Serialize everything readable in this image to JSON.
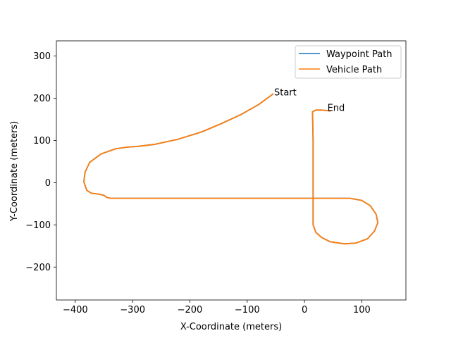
{
  "chart_data": {
    "type": "line",
    "title": "",
    "xlabel": "X-Coordinate (meters)",
    "ylabel": "Y-Coordinate (meters)",
    "xlim": [
      -433,
      177
    ],
    "ylim": [
      -278,
      336
    ],
    "xticks": [
      -400,
      -300,
      -200,
      -100,
      0,
      100
    ],
    "yticks": [
      -200,
      -100,
      0,
      100,
      200,
      300
    ],
    "grid": false,
    "legend_position": "top-right",
    "annotations": [
      {
        "text": "Start",
        "x": -53,
        "y": 207
      },
      {
        "text": "End",
        "x": 40,
        "y": 170
      }
    ],
    "series": [
      {
        "name": "Waypoint Path",
        "color": "#1f77b4",
        "points": [
          [
            -55,
            210
          ],
          [
            -80,
            185
          ],
          [
            -110,
            162
          ],
          [
            -145,
            140
          ],
          [
            -180,
            120
          ],
          [
            -220,
            103
          ],
          [
            -260,
            91
          ],
          [
            -290,
            86
          ],
          [
            -310,
            84
          ],
          [
            -330,
            80
          ],
          [
            -355,
            68
          ],
          [
            -375,
            48
          ],
          [
            -383,
            25
          ],
          [
            -385,
            2
          ],
          [
            -380,
            -18
          ],
          [
            -372,
            -25
          ],
          [
            -360,
            -27
          ],
          [
            -350,
            -30
          ],
          [
            -345,
            -35
          ],
          [
            -338,
            -37
          ],
          [
            -300,
            -37
          ],
          [
            -200,
            -37
          ],
          [
            -100,
            -37
          ],
          [
            0,
            -37
          ],
          [
            50,
            -37
          ],
          [
            80,
            -37
          ],
          [
            100,
            -42
          ],
          [
            115,
            -55
          ],
          [
            125,
            -75
          ],
          [
            128,
            -95
          ],
          [
            122,
            -115
          ],
          [
            110,
            -133
          ],
          [
            90,
            -143
          ],
          [
            70,
            -145
          ],
          [
            45,
            -140
          ],
          [
            30,
            -130
          ],
          [
            20,
            -118
          ],
          [
            15,
            -100
          ],
          [
            15,
            0
          ],
          [
            15,
            100
          ],
          [
            14,
            168
          ],
          [
            20,
            172
          ],
          [
            30,
            172
          ],
          [
            45,
            170
          ]
        ]
      },
      {
        "name": "Vehicle Path",
        "color": "#ff7f0e",
        "points": [
          [
            -55,
            210
          ],
          [
            -80,
            185
          ],
          [
            -110,
            162
          ],
          [
            -145,
            140
          ],
          [
            -180,
            120
          ],
          [
            -220,
            103
          ],
          [
            -260,
            91
          ],
          [
            -290,
            86
          ],
          [
            -310,
            84
          ],
          [
            -330,
            80
          ],
          [
            -355,
            68
          ],
          [
            -375,
            48
          ],
          [
            -383,
            25
          ],
          [
            -385,
            2
          ],
          [
            -380,
            -18
          ],
          [
            -372,
            -25
          ],
          [
            -360,
            -27
          ],
          [
            -350,
            -30
          ],
          [
            -345,
            -35
          ],
          [
            -338,
            -37
          ],
          [
            -300,
            -37
          ],
          [
            -200,
            -37
          ],
          [
            -100,
            -37
          ],
          [
            0,
            -37
          ],
          [
            50,
            -37
          ],
          [
            80,
            -37
          ],
          [
            100,
            -42
          ],
          [
            115,
            -55
          ],
          [
            125,
            -75
          ],
          [
            128,
            -95
          ],
          [
            122,
            -115
          ],
          [
            110,
            -133
          ],
          [
            90,
            -143
          ],
          [
            70,
            -145
          ],
          [
            45,
            -140
          ],
          [
            30,
            -130
          ],
          [
            20,
            -118
          ],
          [
            15,
            -100
          ],
          [
            15,
            0
          ],
          [
            15,
            100
          ],
          [
            14,
            168
          ],
          [
            20,
            172
          ],
          [
            30,
            172
          ],
          [
            45,
            170
          ]
        ]
      }
    ]
  }
}
